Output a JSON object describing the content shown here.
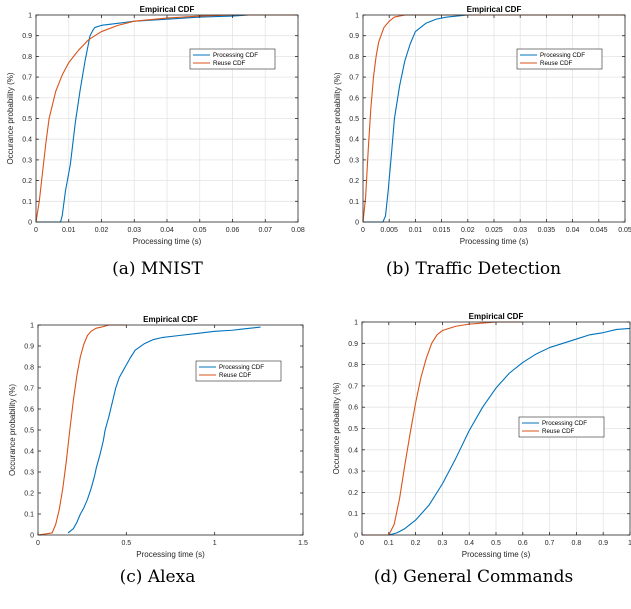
{
  "colors": {
    "processing": "#0072BD",
    "reuse": "#D95319",
    "grid": "#e4e4e4",
    "axis": "#262626"
  },
  "chart_data": [
    {
      "type": "line",
      "caption": "(a)  MNIST",
      "title": "Empirical CDF",
      "xlabel": "Processing time (s)",
      "ylabel": "Occurance probability (%)",
      "xlim": [
        0,
        0.08
      ],
      "ylim": [
        0,
        1
      ],
      "x_ticks": [
        "0",
        "0.01",
        "0.02",
        "0.03",
        "0.04",
        "0.05",
        "0.06",
        "0.07",
        "0.08"
      ],
      "y_ticks": [
        "0",
        "0.1",
        "0.2",
        "0.3",
        "0.4",
        "0.5",
        "0.6",
        "0.7",
        "0.8",
        "0.9",
        "1"
      ],
      "grid": true,
      "legend_position": "upper-right",
      "series": [
        {
          "name": "Processing CDF",
          "color": "#0072BD",
          "x": [
            0,
            0.0075,
            0.008,
            0.009,
            0.0105,
            0.012,
            0.0135,
            0.015,
            0.0165,
            0.0175,
            0.018,
            0.02,
            0.025,
            0.03,
            0.04,
            0.05,
            0.06,
            0.065,
            0.08
          ],
          "y": [
            0,
            0,
            0.03,
            0.15,
            0.28,
            0.48,
            0.64,
            0.78,
            0.9,
            0.93,
            0.94,
            0.95,
            0.96,
            0.97,
            0.98,
            0.99,
            0.995,
            1,
            1
          ]
        },
        {
          "name": "Reuse CDF",
          "color": "#D95319",
          "x": [
            0,
            0.001,
            0.002,
            0.003,
            0.004,
            0.006,
            0.008,
            0.01,
            0.013,
            0.016,
            0.02,
            0.025,
            0.03,
            0.04,
            0.05,
            0.06,
            0.08
          ],
          "y": [
            0,
            0.1,
            0.24,
            0.38,
            0.5,
            0.63,
            0.71,
            0.77,
            0.83,
            0.88,
            0.92,
            0.95,
            0.97,
            0.985,
            0.995,
            1,
            1
          ]
        }
      ]
    },
    {
      "type": "line",
      "caption": "(b)  Traffic Detection",
      "title": "Empirical CDF",
      "xlabel": "Processing time (s)",
      "ylabel": "Occurance probability (%)",
      "xlim": [
        0,
        0.05
      ],
      "ylim": [
        0,
        1
      ],
      "x_ticks": [
        "0",
        "0.005",
        "0.01",
        "0.015",
        "0.02",
        "0.025",
        "0.03",
        "0.035",
        "0.04",
        "0.045",
        "0.05"
      ],
      "y_ticks": [
        "0",
        "0.1",
        "0.2",
        "0.3",
        "0.4",
        "0.5",
        "0.6",
        "0.7",
        "0.8",
        "0.9",
        "1"
      ],
      "grid": true,
      "legend_position": "upper-right",
      "series": [
        {
          "name": "Processing CDF",
          "color": "#0072BD",
          "x": [
            0,
            0.0038,
            0.0043,
            0.0048,
            0.0055,
            0.006,
            0.007,
            0.008,
            0.009,
            0.01,
            0.012,
            0.014,
            0.016,
            0.02,
            0.025,
            0.05
          ],
          "y": [
            0,
            0,
            0.03,
            0.15,
            0.35,
            0.5,
            0.66,
            0.78,
            0.86,
            0.92,
            0.96,
            0.98,
            0.99,
            1,
            1,
            1
          ]
        },
        {
          "name": "Reuse CDF",
          "color": "#D95319",
          "x": [
            0,
            0.0005,
            0.001,
            0.0015,
            0.002,
            0.0025,
            0.003,
            0.004,
            0.005,
            0.006,
            0.008,
            0.01,
            0.05
          ],
          "y": [
            0,
            0.12,
            0.35,
            0.55,
            0.7,
            0.8,
            0.87,
            0.94,
            0.97,
            0.99,
            1,
            1,
            1
          ]
        }
      ]
    },
    {
      "type": "line",
      "caption": "(c)  Alexa",
      "title": "Empirical CDF",
      "xlabel": "Processing time (s)",
      "ylabel": "Occurance probability (%)",
      "xlim": [
        0,
        1.5
      ],
      "ylim": [
        0,
        1
      ],
      "x_ticks": [
        "0",
        "0.5",
        "1",
        "1.5"
      ],
      "y_ticks": [
        "0",
        "0.1",
        "0.2",
        "0.3",
        "0.4",
        "0.5",
        "0.6",
        "0.7",
        "0.8",
        "0.9",
        "1"
      ],
      "grid": false,
      "legend_position": "upper-right",
      "series": [
        {
          "name": "Processing CDF",
          "color": "#0072BD",
          "x": [
            0.17,
            0.2,
            0.22,
            0.24,
            0.26,
            0.28,
            0.3,
            0.32,
            0.33,
            0.35,
            0.37,
            0.38,
            0.4,
            0.42,
            0.44,
            0.46,
            0.48,
            0.5,
            0.52,
            0.55,
            0.6,
            0.65,
            0.7,
            0.8,
            0.9,
            1,
            1.1,
            1.15,
            1.26
          ],
          "y": [
            0.01,
            0.03,
            0.06,
            0.1,
            0.13,
            0.17,
            0.22,
            0.28,
            0.32,
            0.38,
            0.45,
            0.5,
            0.56,
            0.63,
            0.7,
            0.75,
            0.78,
            0.81,
            0.84,
            0.88,
            0.91,
            0.93,
            0.94,
            0.95,
            0.96,
            0.97,
            0.975,
            0.98,
            0.99
          ]
        },
        {
          "name": "Reuse CDF",
          "color": "#D95319",
          "x": [
            0,
            0.08,
            0.1,
            0.12,
            0.14,
            0.16,
            0.18,
            0.2,
            0.22,
            0.24,
            0.26,
            0.28,
            0.3,
            0.33,
            0.36,
            0.4,
            0.45,
            0.5
          ],
          "y": [
            0,
            0.01,
            0.05,
            0.12,
            0.22,
            0.35,
            0.5,
            0.64,
            0.76,
            0.85,
            0.91,
            0.95,
            0.97,
            0.985,
            0.99,
            1,
            1,
            1
          ]
        }
      ]
    },
    {
      "type": "line",
      "caption": "(d)  General Commands",
      "title": "Empirical CDF",
      "xlabel": "Processing time (s)",
      "ylabel": "Occurance probability (%)",
      "xlim": [
        0,
        1
      ],
      "ylim": [
        0,
        1
      ],
      "x_ticks": [
        "0",
        "0.1",
        "0.2",
        "0.3",
        "0.4",
        "0.5",
        "0.6",
        "0.7",
        "0.8",
        "0.9",
        "1"
      ],
      "y_ticks": [
        "0",
        "0.1",
        "0.2",
        "0.3",
        "0.4",
        "0.5",
        "0.6",
        "0.7",
        "0.8",
        "0.9",
        "1"
      ],
      "grid": true,
      "legend_position": "center-right",
      "series": [
        {
          "name": "Processing CDF",
          "color": "#0072BD",
          "x": [
            0,
            0.1,
            0.13,
            0.16,
            0.2,
            0.25,
            0.3,
            0.35,
            0.4,
            0.45,
            0.5,
            0.55,
            0.6,
            0.65,
            0.7,
            0.75,
            0.8,
            0.85,
            0.9,
            0.95,
            1
          ],
          "y": [
            0,
            0,
            0.01,
            0.03,
            0.07,
            0.14,
            0.24,
            0.36,
            0.49,
            0.6,
            0.69,
            0.76,
            0.81,
            0.85,
            0.88,
            0.9,
            0.92,
            0.94,
            0.95,
            0.965,
            0.97
          ]
        },
        {
          "name": "Reuse CDF",
          "color": "#D95319",
          "x": [
            0,
            0.1,
            0.12,
            0.14,
            0.16,
            0.18,
            0.2,
            0.22,
            0.24,
            0.26,
            0.28,
            0.3,
            0.35,
            0.4,
            0.45,
            0.5,
            0.55,
            0.6
          ],
          "y": [
            0,
            0,
            0.05,
            0.17,
            0.33,
            0.48,
            0.62,
            0.74,
            0.83,
            0.9,
            0.94,
            0.96,
            0.98,
            0.99,
            0.995,
            1,
            1,
            1
          ]
        }
      ]
    }
  ]
}
